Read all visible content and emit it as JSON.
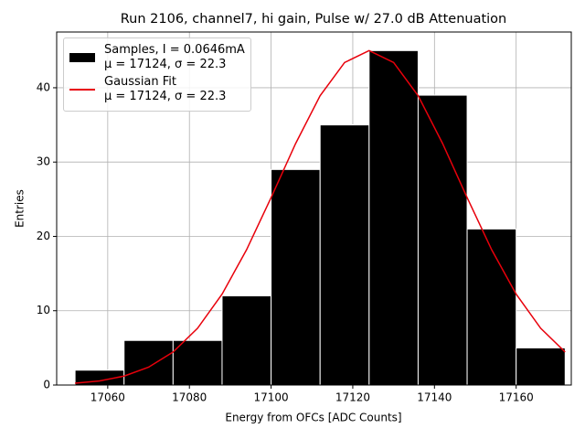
{
  "chart_data": {
    "type": "histogram",
    "title": "Run 2106, channel7, hi gain, Pulse w/ 27.0 dB Attenuation",
    "xlabel": "Energy from OFCs [ADC Counts]",
    "ylabel": "Entries",
    "xlim": [
      17047.5,
      17173.5
    ],
    "ylim": [
      0,
      47.5
    ],
    "xticks": [
      17060,
      17080,
      17100,
      17120,
      17140,
      17160
    ],
    "yticks": [
      0,
      10,
      20,
      30,
      40
    ],
    "grid": true,
    "legend": "upper left",
    "series": [
      {
        "name": "Samples, I = 0.0646mA\nμ = 17124, σ = 22.3",
        "type": "histogram",
        "color": "#000000",
        "bins": [
          17052,
          17064,
          17076,
          17088,
          17100,
          17112,
          17124,
          17136,
          17148,
          17160,
          17172
        ],
        "values": [
          2,
          6,
          6,
          12,
          29,
          35,
          45,
          39,
          21,
          5
        ]
      },
      {
        "name": "Gaussian Fit\nμ = 17124, σ = 22.3",
        "type": "line",
        "color": "#e8000b",
        "x": [
          17052,
          17058,
          17064,
          17070,
          17076,
          17082,
          17088,
          17094,
          17100,
          17106,
          17112,
          17118,
          17124,
          17130,
          17136,
          17142,
          17148,
          17154,
          17160,
          17166,
          17172
        ],
        "values": [
          0.25,
          0.56,
          1.2,
          2.4,
          4.44,
          7.64,
          12.23,
          18.21,
          25.22,
          32.49,
          38.93,
          43.4,
          45,
          43.4,
          38.93,
          32.49,
          25.22,
          18.21,
          12.23,
          7.64,
          4.44
        ]
      }
    ]
  }
}
